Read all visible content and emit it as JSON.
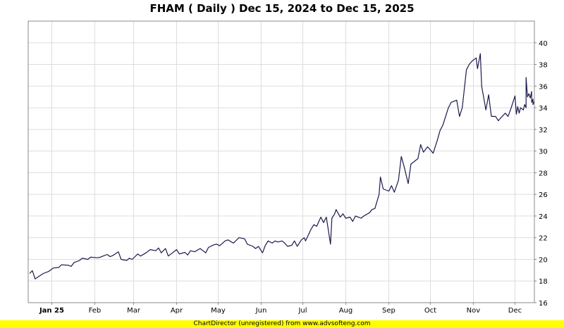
{
  "chart_data": {
    "type": "line",
    "title": "FHAM ( Daily ) Dec 15, 2024 to Dec 15, 2025",
    "xlabel": "",
    "ylabel": "",
    "ylim": [
      16,
      42
    ],
    "y_ticks": [
      16,
      18,
      20,
      22,
      24,
      26,
      28,
      30,
      32,
      34,
      36,
      38,
      40
    ],
    "x_range": [
      "2024-12-15",
      "2025-12-15"
    ],
    "x_ticks": [
      {
        "date": "2025-01-01",
        "label": "Jan 25",
        "bold": true
      },
      {
        "date": "2025-02-01",
        "label": "Feb",
        "bold": false
      },
      {
        "date": "2025-03-01",
        "label": "Mar",
        "bold": false
      },
      {
        "date": "2025-04-01",
        "label": "Apr",
        "bold": false
      },
      {
        "date": "2025-05-01",
        "label": "May",
        "bold": false
      },
      {
        "date": "2025-06-01",
        "label": "Jun",
        "bold": false
      },
      {
        "date": "2025-07-01",
        "label": "Jul",
        "bold": false
      },
      {
        "date": "2025-08-01",
        "label": "Aug",
        "bold": false
      },
      {
        "date": "2025-09-01",
        "label": "Sep",
        "bold": false
      },
      {
        "date": "2025-10-01",
        "label": "Oct",
        "bold": false
      },
      {
        "date": "2025-11-01",
        "label": "Nov",
        "bold": false
      },
      {
        "date": "2025-12-01",
        "label": "Dec",
        "bold": false
      }
    ],
    "grid": true,
    "line_color": "#1a1a4e",
    "series": [
      {
        "name": "",
        "points": [
          [
            "2024-12-16",
            18.7
          ],
          [
            "2024-12-18",
            18.95
          ],
          [
            "2024-12-20",
            18.2
          ],
          [
            "2024-12-23",
            18.45
          ],
          [
            "2024-12-26",
            18.7
          ],
          [
            "2024-12-30",
            18.9
          ],
          [
            "2025-01-02",
            19.2
          ],
          [
            "2025-01-06",
            19.25
          ],
          [
            "2025-01-08",
            19.5
          ],
          [
            "2025-01-13",
            19.45
          ],
          [
            "2025-01-15",
            19.35
          ],
          [
            "2025-01-17",
            19.7
          ],
          [
            "2025-01-21",
            19.9
          ],
          [
            "2025-01-23",
            20.1
          ],
          [
            "2025-01-27",
            20.0
          ],
          [
            "2025-01-29",
            20.2
          ],
          [
            "2025-02-03",
            20.15
          ],
          [
            "2025-02-05",
            20.2
          ],
          [
            "2025-02-07",
            20.3
          ],
          [
            "2025-02-10",
            20.45
          ],
          [
            "2025-02-12",
            20.25
          ],
          [
            "2025-02-14",
            20.35
          ],
          [
            "2025-02-18",
            20.7
          ],
          [
            "2025-02-20",
            20.0
          ],
          [
            "2025-02-24",
            19.9
          ],
          [
            "2025-02-26",
            20.1
          ],
          [
            "2025-02-28",
            20.0
          ],
          [
            "2025-03-04",
            20.5
          ],
          [
            "2025-03-06",
            20.3
          ],
          [
            "2025-03-10",
            20.6
          ],
          [
            "2025-03-13",
            20.9
          ],
          [
            "2025-03-17",
            20.8
          ],
          [
            "2025-03-19",
            21.05
          ],
          [
            "2025-03-21",
            20.6
          ],
          [
            "2025-03-24",
            21.0
          ],
          [
            "2025-03-26",
            20.3
          ],
          [
            "2025-03-28",
            20.5
          ],
          [
            "2025-04-01",
            20.9
          ],
          [
            "2025-04-03",
            20.5
          ],
          [
            "2025-04-07",
            20.65
          ],
          [
            "2025-04-09",
            20.4
          ],
          [
            "2025-04-11",
            20.8
          ],
          [
            "2025-04-14",
            20.7
          ],
          [
            "2025-04-16",
            20.85
          ],
          [
            "2025-04-18",
            21.0
          ],
          [
            "2025-04-22",
            20.6
          ],
          [
            "2025-04-24",
            21.1
          ],
          [
            "2025-04-28",
            21.35
          ],
          [
            "2025-04-30",
            21.4
          ],
          [
            "2025-05-02",
            21.25
          ],
          [
            "2025-05-06",
            21.7
          ],
          [
            "2025-05-08",
            21.8
          ],
          [
            "2025-05-12",
            21.5
          ],
          [
            "2025-05-14",
            21.75
          ],
          [
            "2025-05-16",
            22.0
          ],
          [
            "2025-05-20",
            21.9
          ],
          [
            "2025-05-22",
            21.4
          ],
          [
            "2025-05-26",
            21.2
          ],
          [
            "2025-05-28",
            21.0
          ],
          [
            "2025-05-30",
            21.2
          ],
          [
            "2025-06-02",
            20.6
          ],
          [
            "2025-06-04",
            21.3
          ],
          [
            "2025-06-06",
            21.7
          ],
          [
            "2025-06-09",
            21.5
          ],
          [
            "2025-06-11",
            21.7
          ],
          [
            "2025-06-13",
            21.6
          ],
          [
            "2025-06-16",
            21.7
          ],
          [
            "2025-06-18",
            21.5
          ],
          [
            "2025-06-20",
            21.2
          ],
          [
            "2025-06-23",
            21.3
          ],
          [
            "2025-06-25",
            21.7
          ],
          [
            "2025-06-27",
            21.2
          ],
          [
            "2025-06-30",
            21.8
          ],
          [
            "2025-07-02",
            22.0
          ],
          [
            "2025-07-03",
            21.7
          ],
          [
            "2025-07-07",
            22.8
          ],
          [
            "2025-07-09",
            23.2
          ],
          [
            "2025-07-11",
            23.05
          ],
          [
            "2025-07-14",
            23.9
          ],
          [
            "2025-07-16",
            23.4
          ],
          [
            "2025-07-18",
            23.9
          ],
          [
            "2025-07-21",
            21.4
          ],
          [
            "2025-07-22",
            23.8
          ],
          [
            "2025-07-24",
            24.2
          ],
          [
            "2025-07-25",
            24.6
          ],
          [
            "2025-07-28",
            23.9
          ],
          [
            "2025-07-30",
            24.2
          ],
          [
            "2025-08-01",
            23.8
          ],
          [
            "2025-08-04",
            23.9
          ],
          [
            "2025-08-06",
            23.5
          ],
          [
            "2025-08-08",
            24.0
          ],
          [
            "2025-08-12",
            23.8
          ],
          [
            "2025-08-14",
            24.0
          ],
          [
            "2025-08-18",
            24.3
          ],
          [
            "2025-08-20",
            24.6
          ],
          [
            "2025-08-22",
            24.7
          ],
          [
            "2025-08-25",
            26.0
          ],
          [
            "2025-08-26",
            27.6
          ],
          [
            "2025-08-28",
            26.5
          ],
          [
            "2025-09-01",
            26.3
          ],
          [
            "2025-09-03",
            26.8
          ],
          [
            "2025-09-05",
            26.2
          ],
          [
            "2025-09-08",
            27.3
          ],
          [
            "2025-09-10",
            29.5
          ],
          [
            "2025-09-12",
            28.6
          ],
          [
            "2025-09-15",
            27.0
          ],
          [
            "2025-09-17",
            28.8
          ],
          [
            "2025-09-19",
            29.0
          ],
          [
            "2025-09-22",
            29.3
          ],
          [
            "2025-09-24",
            30.6
          ],
          [
            "2025-09-26",
            29.9
          ],
          [
            "2025-09-29",
            30.4
          ],
          [
            "2025-10-01",
            30.1
          ],
          [
            "2025-10-03",
            29.8
          ],
          [
            "2025-10-06",
            31.0
          ],
          [
            "2025-10-08",
            31.9
          ],
          [
            "2025-10-10",
            32.4
          ],
          [
            "2025-10-14",
            34.0
          ],
          [
            "2025-10-16",
            34.5
          ],
          [
            "2025-10-20",
            34.7
          ],
          [
            "2025-10-22",
            33.2
          ],
          [
            "2025-10-24",
            34.0
          ],
          [
            "2025-10-27",
            37.5
          ],
          [
            "2025-10-29",
            38.0
          ],
          [
            "2025-10-31",
            38.3
          ],
          [
            "2025-11-03",
            38.6
          ],
          [
            "2025-11-04",
            37.6
          ],
          [
            "2025-11-06",
            39.0
          ],
          [
            "2025-11-07",
            36.0
          ],
          [
            "2025-11-10",
            33.8
          ],
          [
            "2025-11-12",
            35.2
          ],
          [
            "2025-11-14",
            33.2
          ],
          [
            "2025-11-17",
            33.2
          ],
          [
            "2025-11-19",
            32.8
          ],
          [
            "2025-11-21",
            33.1
          ],
          [
            "2025-11-24",
            33.5
          ],
          [
            "2025-11-26",
            33.2
          ],
          [
            "2025-11-28",
            33.9
          ],
          [
            "2025-12-01",
            35.1
          ],
          [
            "2025-12-02",
            33.4
          ],
          [
            "2025-12-03",
            34.1
          ],
          [
            "2025-12-04",
            33.5
          ],
          [
            "2025-12-05",
            34.0
          ],
          [
            "2025-12-07",
            33.8
          ],
          [
            "2025-12-08",
            34.3
          ],
          [
            "2025-12-09",
            34.0
          ],
          [
            "2025-12-09",
            36.8
          ],
          [
            "2025-12-10",
            35.0
          ],
          [
            "2025-12-11",
            35.3
          ],
          [
            "2025-12-12",
            34.9
          ],
          [
            "2025-12-13",
            35.5
          ],
          [
            "2025-12-13",
            34.5
          ],
          [
            "2025-12-14",
            34.8
          ],
          [
            "2025-12-14",
            34.3
          ],
          [
            "2025-12-15",
            34.6
          ]
        ]
      }
    ]
  },
  "footer": {
    "text": "ChartDirector (unregistered) from www.advsofteng.com"
  }
}
